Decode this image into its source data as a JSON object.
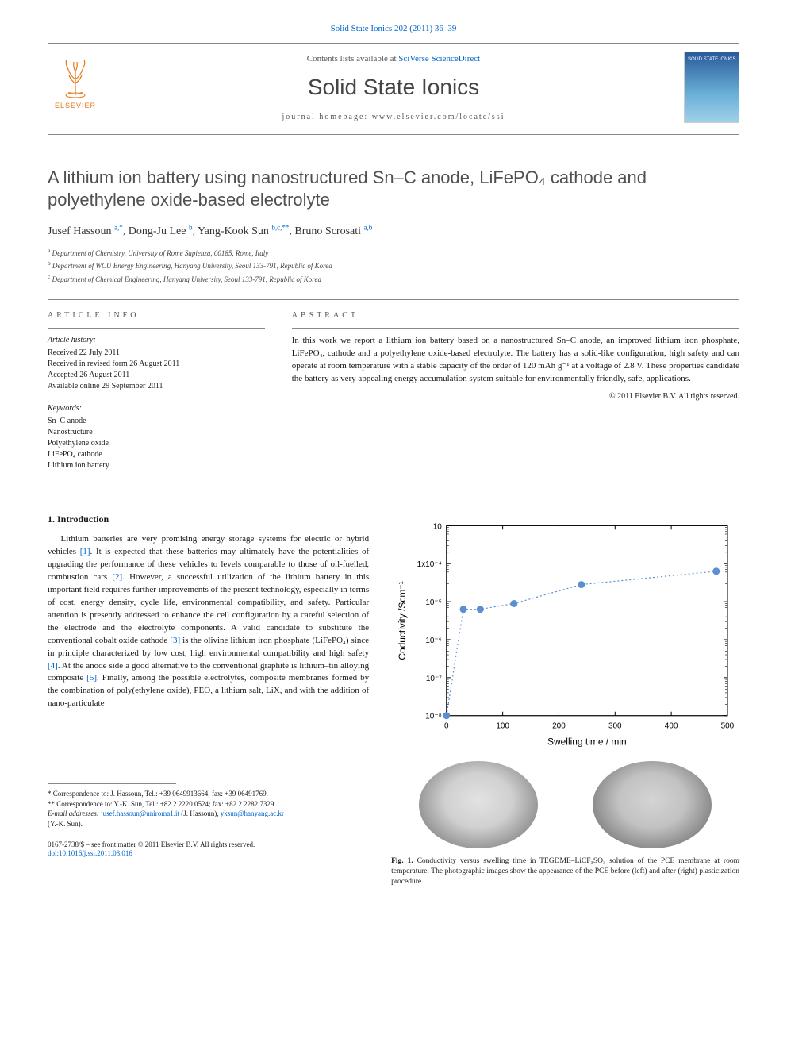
{
  "journal_ref": "Solid State Ionics 202 (2011) 36–39",
  "masthead": {
    "contents_prefix": "Contents lists available at ",
    "contents_link": "SciVerse ScienceDirect",
    "journal_title": "Solid State Ionics",
    "homepage": "journal homepage: www.elsevier.com/locate/ssi"
  },
  "elsevier_label": "ELSEVIER",
  "cover_label": "SOLID STATE IONICS",
  "title": "A lithium ion battery using nanostructured Sn–C anode, LiFePO₄ cathode and polyethylene oxide-based electrolyte",
  "authors": [
    {
      "name": "Jusef Hassoun",
      "sup": "a,*"
    },
    {
      "name": "Dong-Ju Lee",
      "sup": "b"
    },
    {
      "name": "Yang-Kook Sun",
      "sup": "b,c,**"
    },
    {
      "name": "Bruno Scrosati",
      "sup": "a,b"
    }
  ],
  "affiliations": [
    {
      "sup": "a",
      "text": "Department of Chemistry, University of Rome Sapienza, 00185, Rome, Italy"
    },
    {
      "sup": "b",
      "text": "Department of WCU Energy Engineering, Hanyang University, Seoul 133-791, Republic of Korea"
    },
    {
      "sup": "c",
      "text": "Department of Chemical Engineering, Hanyang University, Seoul 133-791, Republic of Korea"
    }
  ],
  "labels": {
    "article_info": "article info",
    "abstract": "abstract",
    "article_history": "Article history:",
    "keywords": "Keywords:"
  },
  "history": [
    "Received 22 July 2011",
    "Received in revised form 26 August 2011",
    "Accepted 26 August 2011",
    "Available online 29 September 2011"
  ],
  "keywords": [
    "Sn–C anode",
    "Nanostructure",
    "Polyethylene oxide",
    "LiFePO₄ cathode",
    "Lithium ion battery"
  ],
  "abstract": "In this work we report a lithium ion battery based on a nanostructured Sn–C anode, an improved lithium iron phosphate, LiFePO₄, cathode and a polyethylene oxide-based electrolyte. The battery has a solid-like configuration, high safety and can operate at room temperature with a stable capacity of the order of 120 mAh g⁻¹ at a voltage of 2.8 V. These properties candidate the battery as very appealing energy accumulation system suitable for environmentally friendly, safe, applications.",
  "copyright_inline": "© 2011 Elsevier B.V. All rights reserved.",
  "section1_heading": "1. Introduction",
  "intro_paragraph_parts": [
    "Lithium batteries are very promising energy storage systems for electric or hybrid vehicles ",
    ". It is expected that these batteries may ultimately have the potentialities of upgrading the performance of these vehicles to levels comparable to those of oil-fuelled, combustion cars ",
    ". However, a successful utilization of the lithium battery in this important field requires further improvements of the present technology, especially in terms of cost, energy density, cycle life, environmental compatibility, and safety. Particular attention is presently addressed to enhance the cell configuration by a careful selection of the electrode and the electrolyte components. A valid candidate to substitute the conventional cobalt oxide cathode ",
    " is the olivine lithium iron phosphate (LiFePO₄) since in principle characterized by low cost, high environmental compatibility and high safety ",
    ". At the anode side a good alternative to the conventional graphite is lithium–tin alloying composite ",
    ". Finally, among the possible electrolytes, composite membranes formed by the combination of poly(ethylene oxide), PEO, a lithium salt, LiX, and with the addition of nano-particulate"
  ],
  "refs": [
    "[1]",
    "[2]",
    "[3]",
    "[4]",
    "[5]"
  ],
  "footnotes": {
    "star1": "* Correspondence to: J. Hassoun, Tel.: +39 0649913664; fax: +39 06491769.",
    "star2": "** Correspondence to: Y.-K. Sun, Tel.: +82 2 2220 0524; fax: +82 2 2282 7329.",
    "email_label": "E-mail addresses: ",
    "email1": "jusef.hassoun@uniroma1.it",
    "email1_aff": " (J. Hassoun), ",
    "email2": "yksun@hanyang.ac.kr",
    "email2_aff": "(Y.-K. Sun)."
  },
  "bottom_copyright": {
    "line1": "0167-2738/$ – see front matter © 2011 Elsevier B.V. All rights reserved.",
    "doi": "doi:10.1016/j.ssi.2011.08.016"
  },
  "figure1": {
    "type": "scatter",
    "ylabel": "Coductivity /Scm⁻¹",
    "xlabel": "Swelling time / min",
    "xlim": [
      0,
      500
    ],
    "xtick_step": 100,
    "ylim_log": [
      1e-08,
      0.001
    ],
    "yticks": [
      "10⁻⁸",
      "10⁻⁷",
      "10⁻⁶",
      "10⁻⁵",
      "1x10⁻⁴",
      "10⁻⁳"
    ],
    "marker_color": "#5b8fd0",
    "marker_size": 6,
    "line_style": "dotted",
    "line_color": "#5b8fd0",
    "axis_color": "#000000",
    "tick_fontsize": 10,
    "label_fontsize": 12,
    "data": [
      {
        "x": 0,
        "y_log10": -8
      },
      {
        "x": 30,
        "y_log10": -5.2
      },
      {
        "x": 60,
        "y_log10": -5.2
      },
      {
        "x": 120,
        "y_log10": -5.05
      },
      {
        "x": 240,
        "y_log10": -4.55
      },
      {
        "x": 480,
        "y_log10": -4.2
      }
    ],
    "caption_bold": "Fig. 1.",
    "caption_text": " Conductivity versus swelling time in TEGDME–LiCF₃SO₃ solution of the PCE membrane at room temperature. The photographic images show the appearance of the PCE before (left) and after (right) plasticization procedure."
  }
}
